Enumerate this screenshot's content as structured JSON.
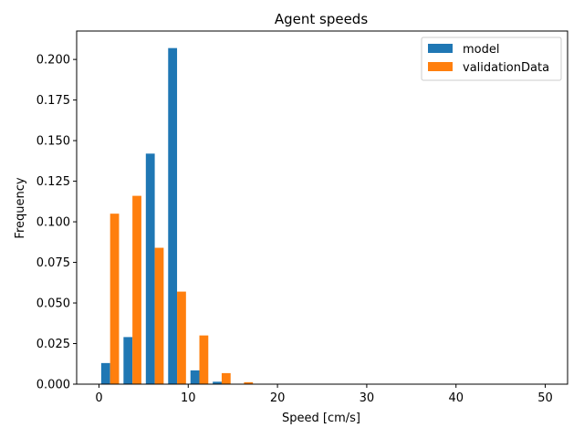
{
  "chart_data": {
    "type": "bar",
    "title": "Agent speeds",
    "xlabel": "Speed [cm/s]",
    "ylabel": "Frequency",
    "xlim": [
      -2.5,
      52.5
    ],
    "ylim": [
      0,
      0.2175
    ],
    "xticks": [
      0,
      10,
      20,
      30,
      40,
      50
    ],
    "xtick_labels": [
      "0",
      "10",
      "20",
      "30",
      "40",
      "50"
    ],
    "yticks": [
      0,
      0.025,
      0.05,
      0.075,
      0.1,
      0.125,
      0.15,
      0.175,
      0.2
    ],
    "ytick_labels": [
      "0.000",
      "0.025",
      "0.050",
      "0.075",
      "0.100",
      "0.125",
      "0.150",
      "0.175",
      "0.200"
    ],
    "bin_edges": [
      0,
      2.5,
      5,
      7.5,
      10,
      12.5,
      15,
      17.5,
      20,
      22.5,
      25,
      27.5,
      30,
      32.5,
      35,
      37.5,
      40,
      42.5,
      45,
      47.5,
      50
    ],
    "legend_position": "upper-right",
    "grid": false,
    "series": [
      {
        "name": "model",
        "color": "#1f77b4",
        "values": [
          0.013,
          0.029,
          0.142,
          0.207,
          0.0085,
          0.0015,
          0,
          0,
          0,
          0,
          0,
          0,
          0,
          0,
          0,
          0,
          0,
          0,
          0,
          0
        ]
      },
      {
        "name": "validationData",
        "color": "#ff7f0e",
        "values": [
          0.105,
          0.116,
          0.084,
          0.057,
          0.03,
          0.0068,
          0.0012,
          0,
          0,
          0,
          0,
          0,
          0,
          0,
          0,
          0,
          0,
          0,
          0,
          0
        ]
      }
    ]
  }
}
